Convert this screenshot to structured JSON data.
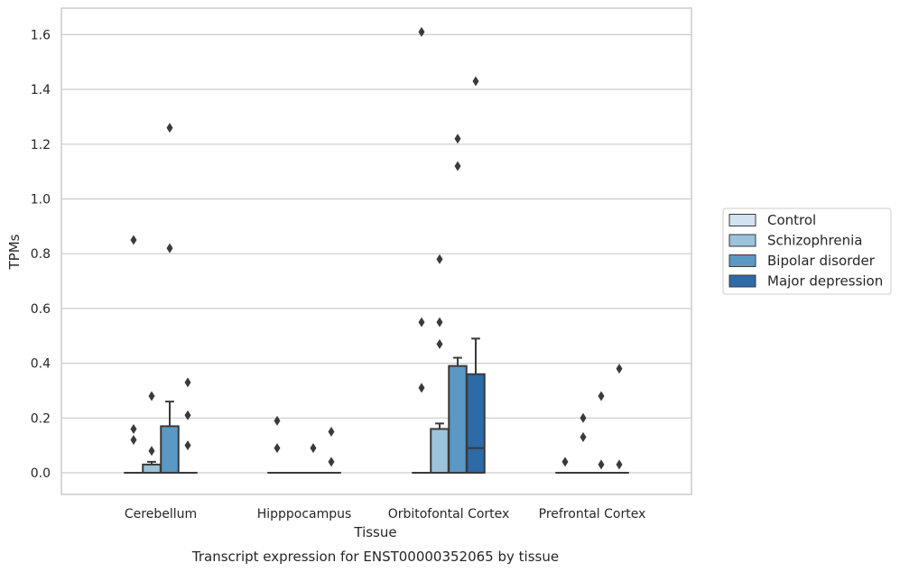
{
  "chart_data": {
    "type": "box",
    "title": "Transcript expression for ENST00000352065 by tissue",
    "xlabel": "Tissue",
    "ylabel": "TPMs",
    "categories": [
      "Cerebellum",
      "Hipppocampus",
      "Orbitofontal Cortex",
      "Prefrontal Cortex"
    ],
    "ylim": [
      -0.08,
      1.69
    ],
    "yticks": [
      "0.0",
      "0.2",
      "0.4",
      "0.6",
      "0.8",
      "1.0",
      "1.2",
      "1.4",
      "1.6"
    ],
    "grid": true,
    "legend_position": "right",
    "series": [
      {
        "name": "Control",
        "color": "#d2e2f2",
        "boxes": [
          {
            "q1": 0,
            "median": 0,
            "q3": 0,
            "whisker_low": 0,
            "whisker_high": 0,
            "outliers": [
              0.85,
              0.16,
              0.12
            ]
          },
          {
            "q1": 0,
            "median": 0,
            "q3": 0,
            "whisker_low": 0,
            "whisker_high": 0,
            "outliers": [
              0.19,
              0.09
            ]
          },
          {
            "q1": 0,
            "median": 0,
            "q3": 0,
            "whisker_low": 0,
            "whisker_high": 0,
            "outliers": [
              1.61,
              0.55,
              0.31
            ]
          },
          {
            "q1": 0,
            "median": 0,
            "q3": 0,
            "whisker_low": 0,
            "whisker_high": 0,
            "outliers": [
              0.04
            ]
          }
        ]
      },
      {
        "name": "Schizophrenia",
        "color": "#9bc3dc",
        "boxes": [
          {
            "q1": 0,
            "median": 0,
            "q3": 0.03,
            "whisker_low": 0,
            "whisker_high": 0.04,
            "outliers": [
              0.28,
              0.08
            ]
          },
          {
            "q1": 0,
            "median": 0,
            "q3": 0,
            "whisker_low": 0,
            "whisker_high": 0,
            "outliers": []
          },
          {
            "q1": 0,
            "median": 0,
            "q3": 0.16,
            "whisker_low": 0,
            "whisker_high": 0.18,
            "outliers": [
              0.78,
              0.55,
              0.47
            ]
          },
          {
            "q1": 0,
            "median": 0,
            "q3": 0,
            "whisker_low": 0,
            "whisker_high": 0,
            "outliers": [
              0.2,
              0.13
            ]
          }
        ]
      },
      {
        "name": "Bipolar disorder",
        "color": "#5a98c5",
        "boxes": [
          {
            "q1": 0,
            "median": 0,
            "q3": 0.17,
            "whisker_low": 0,
            "whisker_high": 0.26,
            "outliers": [
              1.26,
              0.82
            ]
          },
          {
            "q1": 0,
            "median": 0,
            "q3": 0,
            "whisker_low": 0,
            "whisker_high": 0,
            "outliers": [
              0.09
            ]
          },
          {
            "q1": 0,
            "median": 0,
            "q3": 0.39,
            "whisker_low": 0,
            "whisker_high": 0.42,
            "outliers": [
              1.22,
              1.12
            ]
          },
          {
            "q1": 0,
            "median": 0,
            "q3": 0,
            "whisker_low": 0,
            "whisker_high": 0,
            "outliers": [
              0.28,
              0.03
            ]
          }
        ]
      },
      {
        "name": "Major depression",
        "color": "#2c6aa8",
        "boxes": [
          {
            "q1": 0,
            "median": 0,
            "q3": 0,
            "whisker_low": 0,
            "whisker_high": 0,
            "outliers": [
              0.33,
              0.21,
              0.1
            ]
          },
          {
            "q1": 0,
            "median": 0,
            "q3": 0,
            "whisker_low": 0,
            "whisker_high": 0,
            "outliers": [
              0.15,
              0.04
            ]
          },
          {
            "q1": 0,
            "median": 0.09,
            "q3": 0.36,
            "whisker_low": 0,
            "whisker_high": 0.49,
            "outliers": [
              1.43
            ]
          },
          {
            "q1": 0,
            "median": 0,
            "q3": 0,
            "whisker_low": 0,
            "whisker_high": 0,
            "outliers": [
              0.38,
              0.03
            ]
          }
        ]
      }
    ]
  }
}
